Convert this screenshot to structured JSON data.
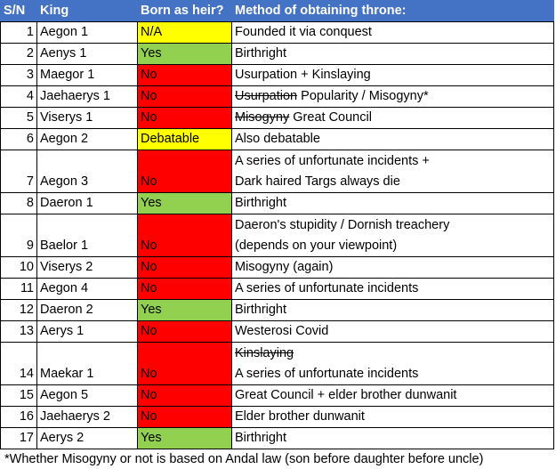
{
  "headers": {
    "sn": "S/N",
    "king": "King",
    "heir": "Born as heir?",
    "method": "Method of obtaining throne:"
  },
  "colors": {
    "header": "#4472C4",
    "N/A": "#FFFF00",
    "Debatable": "#FFFF00",
    "Yes": "#92D050",
    "No": "#FF0000"
  },
  "rows": [
    {
      "sn": "1",
      "king": "Aegon 1",
      "heir": "N/A",
      "method": [
        [
          {
            "t": "Founded it via conquest"
          }
        ]
      ]
    },
    {
      "sn": "2",
      "king": "Aenys 1",
      "heir": "Yes",
      "method": [
        [
          {
            "t": "Birthright"
          }
        ]
      ]
    },
    {
      "sn": "3",
      "king": "Maegor 1",
      "heir": "No",
      "method": [
        [
          {
            "t": "Usurpation + Kinslaying"
          }
        ]
      ]
    },
    {
      "sn": "4",
      "king": "Jaehaerys 1",
      "heir": "No",
      "method": [
        [
          {
            "t": "Usurpation",
            "struck": true
          },
          {
            "t": " Popularity / Misogyny*"
          }
        ]
      ]
    },
    {
      "sn": "5",
      "king": "Viserys 1",
      "heir": "No",
      "method": [
        [
          {
            "t": "Misogyny",
            "struck": true
          },
          {
            "t": " Great Council"
          }
        ]
      ]
    },
    {
      "sn": "6",
      "king": "Aegon 2",
      "heir": "Debatable",
      "method": [
        [
          {
            "t": "Also debatable"
          }
        ]
      ]
    },
    {
      "sn": "7",
      "king": "Aegon 3",
      "heir": "No",
      "method": [
        [
          {
            "t": "A series of unfortunate incidents +"
          }
        ],
        [
          {
            "t": "Dark haired Targs always die"
          }
        ]
      ]
    },
    {
      "sn": "8",
      "king": "Daeron 1",
      "heir": "Yes",
      "method": [
        [
          {
            "t": "Birthright"
          }
        ]
      ]
    },
    {
      "sn": "9",
      "king": "Baelor 1",
      "heir": "No",
      "method": [
        [
          {
            "t": "Daeron's stupidity / Dornish treachery"
          }
        ],
        [
          {
            "t": "(depends on your viewpoint)"
          }
        ]
      ]
    },
    {
      "sn": "10",
      "king": "Viserys 2",
      "heir": "No",
      "method": [
        [
          {
            "t": "Misogyny (again)"
          }
        ]
      ]
    },
    {
      "sn": "11",
      "king": "Aegon 4",
      "heir": "No",
      "method": [
        [
          {
            "t": "A series of unfortunate incidents"
          }
        ]
      ]
    },
    {
      "sn": "12",
      "king": "Daeron 2",
      "heir": "Yes",
      "method": [
        [
          {
            "t": "Birthright"
          }
        ]
      ]
    },
    {
      "sn": "13",
      "king": "Aerys 1",
      "heir": "No",
      "method": [
        [
          {
            "t": "Westerosi Covid"
          }
        ]
      ]
    },
    {
      "sn": "14",
      "king": "Maekar 1",
      "heir": "No",
      "method": [
        [
          {
            "t": "Kinslaying",
            "struck": true
          }
        ],
        [
          {
            "t": "A series of unfortunate incidents"
          }
        ]
      ]
    },
    {
      "sn": "15",
      "king": "Aegon 5",
      "heir": "No",
      "method": [
        [
          {
            "t": "Great Council + elder brother dunwanit"
          }
        ]
      ]
    },
    {
      "sn": "16",
      "king": "Jaehaerys 2",
      "heir": "No",
      "method": [
        [
          {
            "t": "Elder brother dunwanit"
          }
        ]
      ]
    },
    {
      "sn": "17",
      "king": "Aerys 2",
      "heir": "Yes",
      "method": [
        [
          {
            "t": "Birthright"
          }
        ]
      ]
    }
  ],
  "footnote": "*Whether Misogyny or not is based on Andal law (son before daughter before uncle)"
}
